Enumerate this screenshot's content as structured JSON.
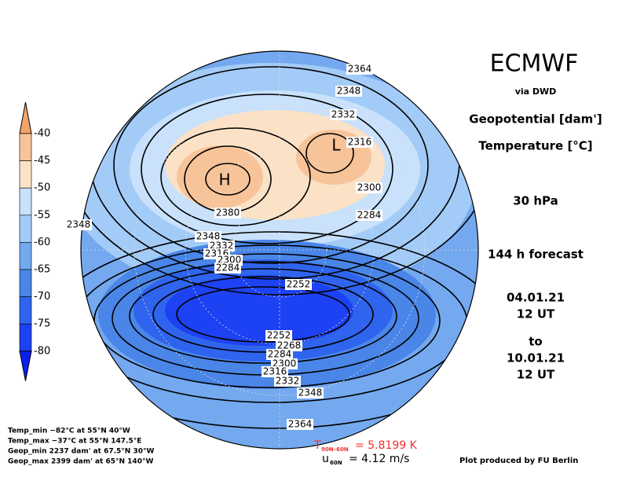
{
  "header": {
    "title": "ECMWF",
    "source": "via DWD",
    "fields": [
      "Geopotential [dam']",
      "Temperature [°C]"
    ],
    "level": "30 hPa",
    "forecast": "144 h forecast",
    "init_date": "04.01.21",
    "init_time": "12 UT",
    "to": "to",
    "valid_date": "10.01.21",
    "valid_time": "12 UT"
  },
  "colorbar": {
    "labels": [
      -40,
      -45,
      -50,
      -55,
      -60,
      -65,
      -70,
      -75,
      -80
    ],
    "colors": [
      "#f3a66a",
      "#f7c49a",
      "#fbe2c6",
      "#c9e1fb",
      "#a3cbf7",
      "#74a9ef",
      "#4a86e8",
      "#2f64ee",
      "#1d42f3",
      "#0a20ee"
    ]
  },
  "map": {
    "contour_labels": [
      "2364",
      "2348",
      "2332",
      "2316",
      "2300",
      "2284",
      "2380",
      "2348",
      "2348",
      "2332",
      "2316",
      "2300",
      "2284",
      "2252",
      "2252",
      "2268",
      "2284",
      "2300",
      "2316",
      "2332",
      "2348",
      "2364"
    ],
    "high": "H",
    "low": "L"
  },
  "stats": [
    "Temp_min −82°C at 55°N 40°W",
    "Temp_max −37°C at 55°N 147.5°E",
    "Geop_min 2237 dam' at 67.5°N 30°W",
    "Geop_max 2399 dam' at 65°N 140°W"
  ],
  "footer": {
    "t_symbol": "T",
    "t_sub": "90N–60N",
    "t_value": "= 5.8199 K",
    "u_symbol": "u",
    "u_sub": "60N",
    "u_value": "= 4.12 m/s",
    "credit": "Plot produced by FU Berlin"
  }
}
